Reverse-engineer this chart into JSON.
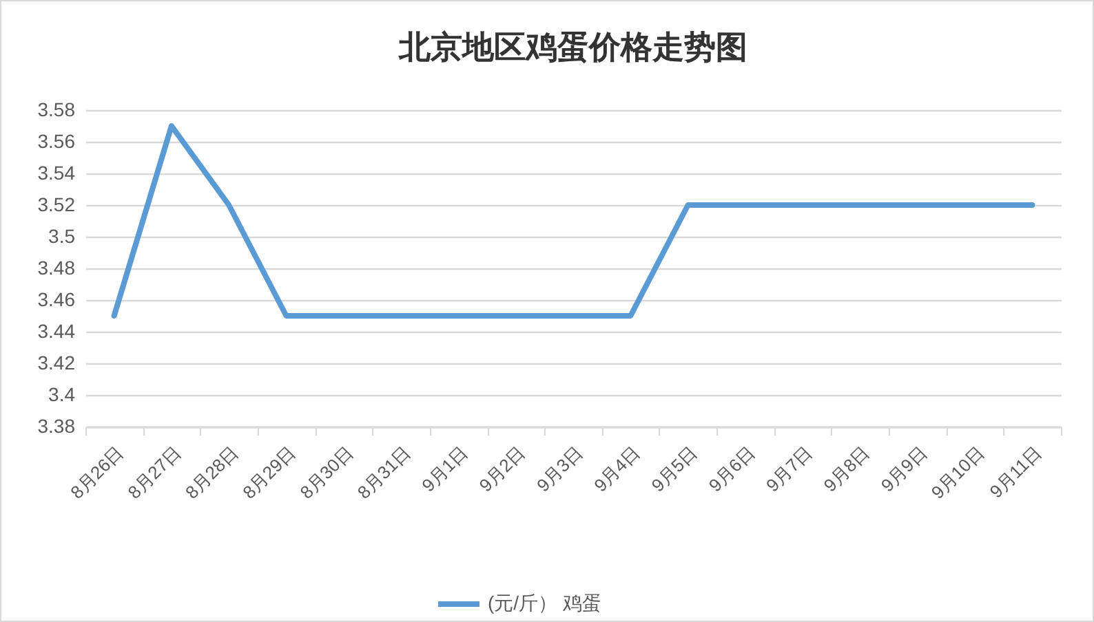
{
  "chart_data": {
    "type": "line",
    "title": "北京地区鸡蛋价格走势图",
    "categories": [
      "8月26日",
      "8月27日",
      "8月28日",
      "8月29日",
      "8月30日",
      "8月31日",
      "9月1日",
      "9月2日",
      "9月3日",
      "9月4日",
      "9月5日",
      "9月6日",
      "9月7日",
      "9月8日",
      "9月9日",
      "9月10日",
      "9月11日"
    ],
    "series": [
      {
        "name": "(元/斤） 鸡蛋",
        "color": "#5b9bd5",
        "values": [
          3.45,
          3.57,
          3.52,
          3.45,
          3.45,
          3.45,
          3.45,
          3.45,
          3.45,
          3.45,
          3.52,
          3.52,
          3.52,
          3.52,
          3.52,
          3.52,
          3.52
        ]
      }
    ],
    "ylim": [
      3.38,
      3.58
    ],
    "yticks": [
      3.38,
      3.4,
      3.42,
      3.44,
      3.46,
      3.48,
      3.5,
      3.52,
      3.54,
      3.56,
      3.58
    ],
    "grid": "y",
    "legend": "bottom",
    "line_style": "solid"
  }
}
